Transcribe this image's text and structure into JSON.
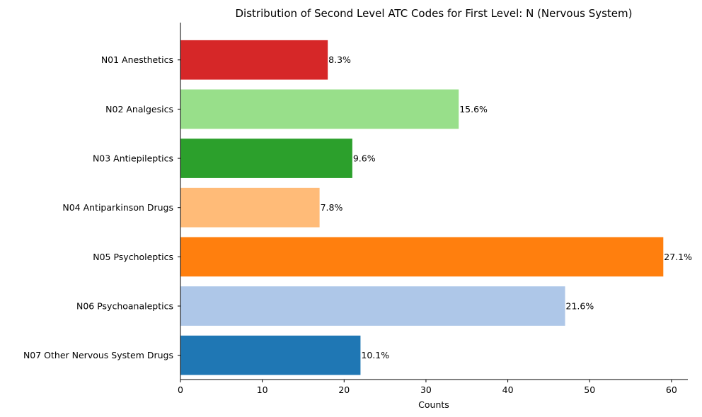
{
  "chart_data": {
    "type": "bar",
    "orientation": "horizontal",
    "title": "Distribution of Second Level ATC Codes for First Level: N (Nervous System)",
    "xlabel": "Counts",
    "ylabel": "",
    "xlim": [
      0,
      62
    ],
    "xticks": [
      0,
      10,
      20,
      30,
      40,
      50,
      60
    ],
    "grid": false,
    "categories": [
      "N01 Anesthetics",
      "N02 Analgesics",
      "N03 Antiepileptics",
      "N04 Antiparkinson Drugs",
      "N05 Psycholeptics",
      "N06 Psychoanaleptics",
      "N07 Other Nervous System Drugs"
    ],
    "values": [
      18,
      34,
      21,
      17,
      59,
      47,
      22
    ],
    "labels": [
      "8.3%",
      "15.6%",
      "9.6%",
      "7.8%",
      "27.1%",
      "21.6%",
      "10.1%"
    ],
    "colors": [
      "#d62728",
      "#98df8a",
      "#2ca02c",
      "#ffbb78",
      "#ff7f0e",
      "#aec7e8",
      "#1f77b4"
    ]
  }
}
